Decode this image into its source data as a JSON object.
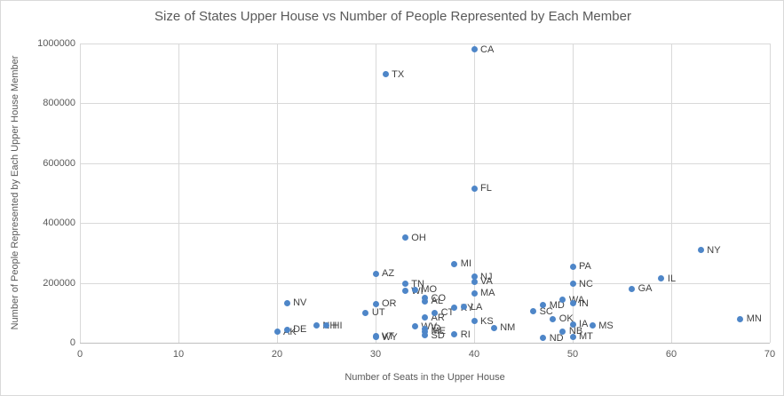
{
  "chart_data": {
    "type": "scatter",
    "title": "Size of States Upper House vs Number of People Represented by Each Member",
    "xlabel": "Number of Seats in the Upper House",
    "ylabel": "Number of People Represented by Each Upper House Member",
    "xlim": [
      0,
      70
    ],
    "ylim": [
      0,
      1000000
    ],
    "x_ticks": [
      0,
      10,
      20,
      30,
      40,
      50,
      60,
      70
    ],
    "y_ticks": [
      0,
      200000,
      400000,
      600000,
      800000,
      1000000
    ],
    "grid": true,
    "legend": "none",
    "colors": {
      "marker": "#4e86c8",
      "grid": "#d9d9d9",
      "axis_text": "#595959",
      "data_label_text": "#404040",
      "title_text": "#595959"
    },
    "points": [
      {
        "label": "AK",
        "x": 20,
        "y": 36000
      },
      {
        "label": "DE",
        "x": 21,
        "y": 44000
      },
      {
        "label": "NV",
        "x": 21,
        "y": 133000
      },
      {
        "label": "NH",
        "x": 24,
        "y": 57000
      },
      {
        "label": "HI",
        "x": 25,
        "y": 57000
      },
      {
        "label": "UT",
        "x": 29,
        "y": 100000
      },
      {
        "label": "AZ",
        "x": 30,
        "y": 230000
      },
      {
        "label": "OR",
        "x": 30,
        "y": 130000
      },
      {
        "label": "VT",
        "x": 30,
        "y": 21000
      },
      {
        "label": "WY",
        "x": 30,
        "y": 18000
      },
      {
        "label": "TX",
        "x": 31,
        "y": 897000
      },
      {
        "label": "OH",
        "x": 33,
        "y": 351000
      },
      {
        "label": "TN",
        "x": 33,
        "y": 197000
      },
      {
        "label": "WI",
        "x": 33,
        "y": 173000
      },
      {
        "label": "MO",
        "x": 34,
        "y": 178000
      },
      {
        "label": "WV",
        "x": 34,
        "y": 54000
      },
      {
        "label": "CO",
        "x": 35,
        "y": 149000
      },
      {
        "label": "AL",
        "x": 35,
        "y": 138000
      },
      {
        "label": "AR",
        "x": 35,
        "y": 84000
      },
      {
        "label": "ID",
        "x": 35,
        "y": 46000
      },
      {
        "label": "ME",
        "x": 35,
        "y": 38000
      },
      {
        "label": "SD",
        "x": 35,
        "y": 24000
      },
      {
        "label": "CT",
        "x": 36,
        "y": 100000
      },
      {
        "label": "MI",
        "x": 38,
        "y": 263000
      },
      {
        "label": "KY",
        "x": 38,
        "y": 116000
      },
      {
        "label": "RI",
        "x": 38,
        "y": 28000
      },
      {
        "label": "LA",
        "x": 39,
        "y": 119000
      },
      {
        "label": "CA",
        "x": 40,
        "y": 980000
      },
      {
        "label": "FL",
        "x": 40,
        "y": 516000
      },
      {
        "label": "NJ",
        "x": 40,
        "y": 220000
      },
      {
        "label": "VA",
        "x": 40,
        "y": 204000
      },
      {
        "label": "MA",
        "x": 40,
        "y": 165000
      },
      {
        "label": "KS",
        "x": 40,
        "y": 72000
      },
      {
        "label": "NM",
        "x": 42,
        "y": 50000
      },
      {
        "label": "SC",
        "x": 46,
        "y": 104000
      },
      {
        "label": "MD",
        "x": 47,
        "y": 126000
      },
      {
        "label": "ND",
        "x": 47,
        "y": 15000
      },
      {
        "label": "OK",
        "x": 48,
        "y": 79000
      },
      {
        "label": "WA",
        "x": 49,
        "y": 143000
      },
      {
        "label": "NB",
        "x": 49,
        "y": 38000
      },
      {
        "label": "PA",
        "x": 50,
        "y": 254000
      },
      {
        "label": "NC",
        "x": 50,
        "y": 196000
      },
      {
        "label": "IN",
        "x": 50,
        "y": 131000
      },
      {
        "label": "IA",
        "x": 50,
        "y": 61000
      },
      {
        "label": "MT",
        "x": 50,
        "y": 20000
      },
      {
        "label": "MS",
        "x": 52,
        "y": 57000
      },
      {
        "label": "GA",
        "x": 56,
        "y": 180000
      },
      {
        "label": "IL",
        "x": 59,
        "y": 214000
      },
      {
        "label": "NY",
        "x": 63,
        "y": 310000
      },
      {
        "label": "MN",
        "x": 67,
        "y": 79000
      }
    ]
  }
}
